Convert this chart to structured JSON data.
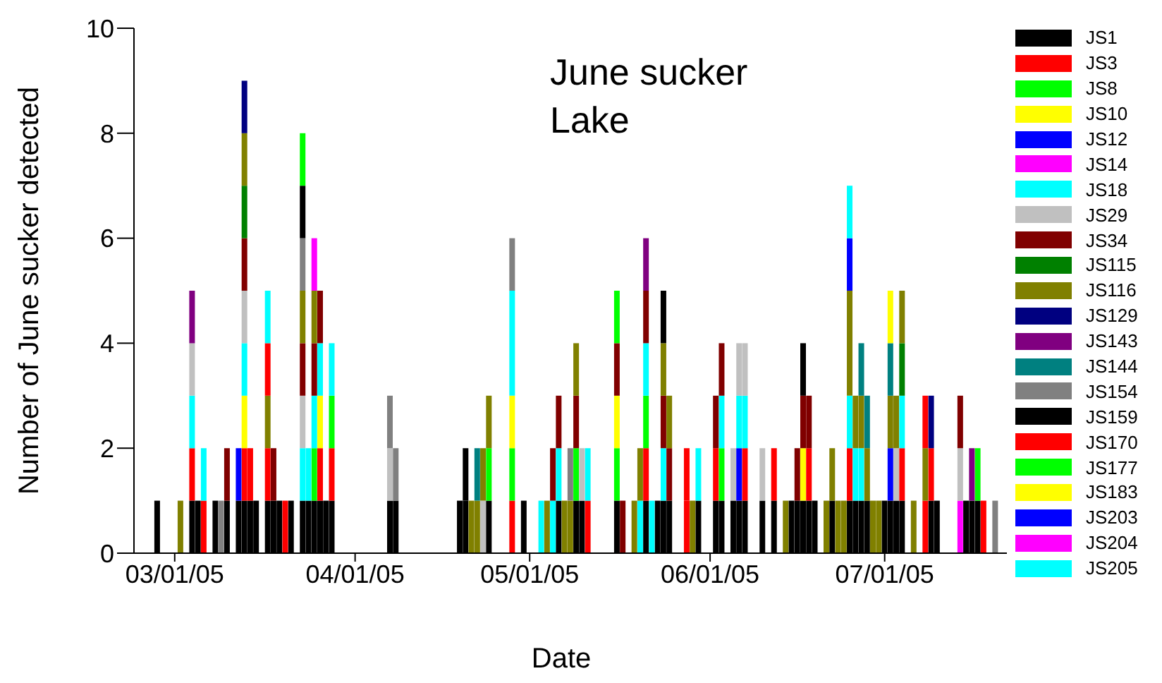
{
  "chart_data": {
    "type": "bar",
    "stacked": true,
    "title": "June sucker Lake",
    "xlabel": "Date",
    "ylabel": "Number of June sucker detected",
    "xlim": [
      "2005-02-22",
      "2005-07-22"
    ],
    "xticks": [
      {
        "value": "2005-03-01",
        "label": "03/01/05"
      },
      {
        "value": "2005-04-01",
        "label": "04/01/05"
      },
      {
        "value": "2005-05-01",
        "label": "05/01/05"
      },
      {
        "value": "2005-06-01",
        "label": "06/01/05"
      },
      {
        "value": "2005-07-01",
        "label": "07/01/05"
      }
    ],
    "ylim": [
      0,
      10
    ],
    "yticks": [
      0,
      2,
      4,
      6,
      8,
      10
    ],
    "grid": false,
    "legend": "right",
    "x": [
      "2005-02-26",
      "2005-03-02",
      "2005-03-04",
      "2005-03-05",
      "2005-03-06",
      "2005-03-08",
      "2005-03-09",
      "2005-03-10",
      "2005-03-12",
      "2005-03-13",
      "2005-03-14",
      "2005-03-15",
      "2005-03-17",
      "2005-03-18",
      "2005-03-19",
      "2005-03-20",
      "2005-03-21",
      "2005-03-23",
      "2005-03-24",
      "2005-03-25",
      "2005-03-26",
      "2005-03-27",
      "2005-03-28",
      "2005-04-07",
      "2005-04-08",
      "2005-04-19",
      "2005-04-20",
      "2005-04-21",
      "2005-04-22",
      "2005-04-23",
      "2005-04-24",
      "2005-04-28",
      "2005-04-30",
      "2005-05-03",
      "2005-05-04",
      "2005-05-05",
      "2005-05-06",
      "2005-05-07",
      "2005-05-08",
      "2005-05-09",
      "2005-05-10",
      "2005-05-11",
      "2005-05-16",
      "2005-05-17",
      "2005-05-19",
      "2005-05-20",
      "2005-05-21",
      "2005-05-22",
      "2005-05-23",
      "2005-05-24",
      "2005-05-25",
      "2005-05-28",
      "2005-05-29",
      "2005-05-30",
      "2005-06-02",
      "2005-06-03",
      "2005-06-05",
      "2005-06-06",
      "2005-06-07",
      "2005-06-10",
      "2005-06-12",
      "2005-06-14",
      "2005-06-15",
      "2005-06-16",
      "2005-06-17",
      "2005-06-18",
      "2005-06-19",
      "2005-06-21",
      "2005-06-22",
      "2005-06-23",
      "2005-06-24",
      "2005-06-25",
      "2005-06-26",
      "2005-06-27",
      "2005-06-28",
      "2005-06-29",
      "2005-06-30",
      "2005-07-01",
      "2005-07-02",
      "2005-07-03",
      "2005-07-04",
      "2005-07-06",
      "2005-07-08",
      "2005-07-09",
      "2005-07-10",
      "2005-07-14",
      "2005-07-15",
      "2005-07-16",
      "2005-07-17",
      "2005-07-18",
      "2005-07-20"
    ],
    "series": [
      {
        "name": "JS1",
        "color": "#000000",
        "values": [
          1,
          null,
          1,
          1,
          null,
          1,
          null,
          1,
          1,
          1,
          1,
          1,
          1,
          1,
          1,
          null,
          1,
          1,
          1,
          1,
          1,
          1,
          1,
          1,
          1,
          1,
          1,
          null,
          null,
          null,
          1,
          null,
          1,
          null,
          null,
          null,
          1,
          null,
          null,
          1,
          1,
          null,
          1,
          null,
          null,
          null,
          1,
          null,
          1,
          1,
          1,
          null,
          null,
          1,
          1,
          1,
          1,
          1,
          1,
          1,
          1,
          null,
          1,
          1,
          1,
          1,
          1,
          null,
          1,
          null,
          null,
          1,
          1,
          1,
          1,
          null,
          null,
          1,
          1,
          1,
          1,
          null,
          null,
          1,
          1,
          null,
          1,
          1,
          1,
          null,
          null
        ]
      },
      {
        "name": "JS3",
        "color": "#ff0000",
        "values": [
          null,
          null,
          1,
          null,
          1,
          null,
          null,
          null,
          null,
          1,
          1,
          null,
          1,
          null,
          null,
          1,
          null,
          null,
          null,
          null,
          1,
          null,
          1,
          null,
          null,
          null,
          null,
          null,
          null,
          null,
          null,
          1,
          null,
          null,
          null,
          null,
          null,
          null,
          null,
          null,
          null,
          1,
          null,
          null,
          null,
          null,
          1,
          null,
          null,
          null,
          null,
          1,
          null,
          null,
          1,
          null,
          null,
          null,
          1,
          null,
          1,
          null,
          null,
          null,
          null,
          1,
          null,
          null,
          null,
          null,
          null,
          1,
          null,
          null,
          null,
          null,
          null,
          null,
          null,
          null,
          1,
          null,
          1,
          1,
          null,
          null,
          null,
          null,
          null,
          1,
          null
        ]
      },
      {
        "name": "JS8",
        "color": "#00ff00",
        "values": [
          null,
          null,
          null,
          null,
          null,
          null,
          null,
          null,
          null,
          null,
          null,
          null,
          null,
          null,
          null,
          null,
          null,
          null,
          null,
          1,
          null,
          null,
          null,
          null,
          null,
          null,
          null,
          null,
          null,
          null,
          1,
          1,
          null,
          null,
          null,
          null,
          null,
          null,
          null,
          1,
          null,
          null,
          1,
          null,
          null,
          null,
          1,
          null,
          null,
          null,
          null,
          null,
          null,
          null,
          null,
          1,
          null,
          null,
          null,
          null,
          null,
          null,
          null,
          null,
          null,
          null,
          null,
          null,
          null,
          null,
          null,
          null,
          null,
          null,
          null,
          null,
          null,
          null,
          null,
          null,
          null,
          null,
          null,
          null,
          null,
          null,
          null,
          null,
          1,
          null,
          null
        ]
      },
      {
        "name": "JS10",
        "color": "#ffff00",
        "values": [
          null,
          null,
          null,
          null,
          null,
          null,
          null,
          null,
          null,
          1,
          null,
          null,
          null,
          null,
          null,
          null,
          null,
          null,
          null,
          null,
          1,
          null,
          null,
          null,
          null,
          null,
          null,
          null,
          null,
          null,
          null,
          1,
          null,
          null,
          null,
          null,
          null,
          null,
          null,
          null,
          null,
          null,
          1,
          null,
          null,
          null,
          null,
          null,
          null,
          null,
          null,
          null,
          null,
          null,
          null,
          null,
          null,
          null,
          null,
          null,
          null,
          null,
          null,
          null,
          1,
          null,
          null,
          null,
          null,
          null,
          null,
          null,
          null,
          null,
          null,
          null,
          null,
          null,
          null,
          null,
          null,
          null,
          null,
          null,
          null,
          null,
          null,
          null,
          null,
          null,
          null
        ]
      },
      {
        "name": "JS12",
        "color": "#0000ff",
        "values": [
          null,
          null,
          null,
          null,
          null,
          null,
          null,
          null,
          1,
          null,
          null,
          null,
          null,
          null,
          null,
          null,
          null,
          null,
          null,
          null,
          null,
          null,
          null,
          null,
          null,
          null,
          null,
          null,
          null,
          null,
          null,
          null,
          null,
          null,
          null,
          null,
          null,
          null,
          null,
          null,
          null,
          null,
          null,
          null,
          null,
          null,
          null,
          null,
          null,
          null,
          null,
          null,
          null,
          null,
          null,
          null,
          null,
          1,
          null,
          null,
          null,
          null,
          null,
          null,
          null,
          null,
          null,
          null,
          null,
          null,
          null,
          null,
          null,
          null,
          null,
          null,
          null,
          null,
          1,
          null,
          null,
          null,
          null,
          null,
          null,
          null,
          null,
          null,
          null,
          null,
          null
        ]
      },
      {
        "name": "JS14",
        "color": "#ff00ff",
        "values": [
          null,
          null,
          null,
          null,
          null,
          null,
          null,
          null,
          null,
          null,
          null,
          null,
          null,
          null,
          null,
          null,
          null,
          null,
          null,
          null,
          null,
          null,
          null,
          null,
          null,
          null,
          null,
          null,
          null,
          null,
          null,
          null,
          null,
          null,
          null,
          null,
          null,
          null,
          null,
          null,
          null,
          null,
          null,
          null,
          null,
          null,
          null,
          null,
          null,
          null,
          null,
          null,
          null,
          null,
          null,
          null,
          null,
          null,
          null,
          null,
          null,
          null,
          null,
          null,
          null,
          null,
          null,
          null,
          null,
          null,
          null,
          null,
          null,
          null,
          null,
          null,
          null,
          null,
          null,
          null,
          null,
          null,
          null,
          null,
          null,
          1,
          null,
          null,
          null,
          null,
          null
        ]
      },
      {
        "name": "JS18",
        "color": "#00ffff",
        "values": [
          null,
          null,
          1,
          null,
          1,
          null,
          null,
          null,
          null,
          1,
          null,
          null,
          null,
          null,
          null,
          null,
          null,
          1,
          1,
          1,
          1,
          null,
          null,
          null,
          null,
          null,
          null,
          null,
          null,
          null,
          null,
          2,
          null,
          1,
          null,
          1,
          1,
          null,
          null,
          null,
          null,
          1,
          null,
          null,
          null,
          1,
          1,
          1,
          null,
          1,
          null,
          null,
          null,
          1,
          null,
          1,
          null,
          1,
          1,
          null,
          null,
          null,
          null,
          null,
          null,
          null,
          null,
          null,
          null,
          null,
          null,
          1,
          1,
          1,
          null,
          null,
          null,
          null,
          null,
          null,
          1,
          null,
          null,
          null,
          null,
          null,
          null,
          null,
          null,
          null,
          null
        ]
      },
      {
        "name": "JS29",
        "color": "#c0c0c0",
        "values": [
          null,
          null,
          1,
          null,
          null,
          null,
          null,
          null,
          null,
          1,
          null,
          null,
          null,
          null,
          null,
          null,
          null,
          1,
          null,
          null,
          null,
          null,
          null,
          1,
          null,
          null,
          null,
          null,
          null,
          1,
          null,
          null,
          null,
          null,
          null,
          null,
          null,
          null,
          null,
          null,
          1,
          null,
          null,
          null,
          null,
          null,
          null,
          null,
          null,
          null,
          null,
          null,
          null,
          null,
          null,
          null,
          1,
          1,
          1,
          1,
          null,
          null,
          null,
          null,
          null,
          null,
          null,
          null,
          null,
          null,
          null,
          null,
          null,
          null,
          null,
          null,
          null,
          null,
          null,
          1,
          null,
          null,
          null,
          null,
          null,
          1,
          null,
          null,
          null,
          null,
          null
        ]
      },
      {
        "name": "JS34",
        "color": "#800000",
        "values": [
          null,
          null,
          null,
          null,
          null,
          null,
          null,
          1,
          null,
          1,
          null,
          null,
          null,
          1,
          null,
          null,
          null,
          1,
          null,
          1,
          1,
          null,
          null,
          null,
          null,
          null,
          null,
          null,
          null,
          null,
          null,
          null,
          null,
          null,
          null,
          1,
          1,
          null,
          null,
          1,
          null,
          null,
          1,
          1,
          null,
          null,
          1,
          null,
          null,
          1,
          1,
          null,
          null,
          null,
          1,
          1,
          null,
          null,
          null,
          null,
          null,
          null,
          null,
          1,
          1,
          1,
          null,
          null,
          null,
          null,
          null,
          null,
          null,
          null,
          null,
          null,
          null,
          null,
          null,
          null,
          null,
          null,
          null,
          null,
          null,
          1,
          null,
          null,
          null,
          null,
          null
        ]
      },
      {
        "name": "JS115",
        "color": "#008000",
        "values": [
          null,
          null,
          null,
          null,
          null,
          null,
          null,
          null,
          null,
          1,
          null,
          null,
          null,
          null,
          null,
          null,
          null,
          null,
          null,
          null,
          null,
          null,
          null,
          null,
          null,
          null,
          null,
          null,
          null,
          null,
          null,
          null,
          null,
          null,
          null,
          null,
          null,
          null,
          null,
          null,
          null,
          null,
          null,
          null,
          null,
          null,
          null,
          null,
          null,
          null,
          null,
          null,
          null,
          null,
          null,
          null,
          null,
          null,
          null,
          null,
          null,
          null,
          null,
          null,
          null,
          null,
          null,
          null,
          null,
          null,
          null,
          null,
          null,
          null,
          null,
          null,
          null,
          null,
          null,
          null,
          1,
          null,
          null,
          null,
          null,
          null,
          null,
          null,
          null,
          null,
          null
        ]
      },
      {
        "name": "JS116",
        "color": "#808000",
        "values": [
          null,
          1,
          null,
          null,
          null,
          null,
          null,
          null,
          null,
          1,
          null,
          null,
          1,
          null,
          null,
          null,
          null,
          1,
          null,
          1,
          null,
          null,
          null,
          null,
          null,
          null,
          null,
          1,
          1,
          1,
          1,
          null,
          null,
          null,
          1,
          null,
          null,
          1,
          1,
          1,
          null,
          null,
          null,
          null,
          1,
          1,
          null,
          null,
          null,
          1,
          1,
          null,
          1,
          null,
          null,
          null,
          null,
          null,
          null,
          null,
          null,
          1,
          null,
          null,
          null,
          null,
          null,
          1,
          1,
          1,
          1,
          2,
          1,
          1,
          1,
          1,
          1,
          null,
          1,
          1,
          1,
          1,
          1,
          null,
          null,
          null,
          null,
          null,
          null,
          null,
          null
        ]
      },
      {
        "name": "JS129",
        "color": "#000080",
        "values": [
          null,
          null,
          null,
          null,
          null,
          null,
          null,
          null,
          null,
          1,
          null,
          null,
          null,
          null,
          null,
          null,
          null,
          null,
          null,
          null,
          null,
          null,
          null,
          null,
          null,
          null,
          null,
          null,
          null,
          null,
          null,
          null,
          null,
          null,
          null,
          null,
          null,
          null,
          null,
          null,
          null,
          null,
          null,
          null,
          null,
          null,
          null,
          null,
          null,
          null,
          null,
          null,
          null,
          null,
          null,
          null,
          null,
          null,
          null,
          null,
          null,
          null,
          null,
          null,
          null,
          null,
          null,
          null,
          null,
          null,
          null,
          null,
          null,
          null,
          null,
          null,
          null,
          null,
          null,
          null,
          null,
          null,
          null,
          1,
          null,
          null,
          null,
          null,
          null,
          null,
          null
        ]
      },
      {
        "name": "JS143",
        "color": "#800080",
        "values": [
          null,
          null,
          1,
          null,
          null,
          null,
          null,
          null,
          null,
          null,
          null,
          null,
          null,
          null,
          null,
          null,
          null,
          null,
          null,
          null,
          null,
          null,
          null,
          null,
          null,
          null,
          null,
          null,
          null,
          null,
          null,
          null,
          null,
          null,
          null,
          null,
          null,
          null,
          null,
          null,
          null,
          null,
          null,
          null,
          null,
          null,
          1,
          null,
          null,
          null,
          null,
          null,
          null,
          null,
          null,
          null,
          null,
          null,
          null,
          null,
          null,
          null,
          null,
          null,
          null,
          null,
          null,
          null,
          null,
          null,
          null,
          null,
          null,
          null,
          null,
          null,
          null,
          null,
          null,
          null,
          null,
          null,
          null,
          null,
          null,
          null,
          null,
          1,
          null,
          null,
          null
        ]
      },
      {
        "name": "JS144",
        "color": "#008080",
        "values": [
          null,
          null,
          null,
          null,
          null,
          null,
          null,
          null,
          null,
          null,
          null,
          null,
          null,
          null,
          null,
          null,
          null,
          null,
          null,
          null,
          null,
          null,
          null,
          null,
          null,
          null,
          null,
          null,
          1,
          null,
          null,
          null,
          null,
          null,
          null,
          null,
          null,
          null,
          null,
          null,
          null,
          null,
          null,
          null,
          null,
          null,
          null,
          null,
          null,
          null,
          null,
          null,
          null,
          null,
          null,
          null,
          null,
          null,
          null,
          null,
          null,
          null,
          null,
          null,
          null,
          null,
          null,
          null,
          null,
          null,
          null,
          null,
          null,
          1,
          1,
          null,
          null,
          null,
          1,
          null,
          null,
          null,
          null,
          null,
          null,
          null,
          null,
          null,
          null,
          null,
          null
        ]
      },
      {
        "name": "JS154",
        "color": "#808080",
        "values": [
          null,
          null,
          null,
          null,
          null,
          null,
          1,
          null,
          null,
          null,
          null,
          null,
          null,
          null,
          null,
          null,
          null,
          1,
          null,
          null,
          null,
          null,
          null,
          1,
          1,
          null,
          null,
          null,
          null,
          null,
          null,
          1,
          null,
          null,
          null,
          null,
          null,
          null,
          1,
          null,
          null,
          null,
          null,
          null,
          null,
          null,
          null,
          null,
          null,
          null,
          null,
          null,
          null,
          null,
          null,
          null,
          null,
          null,
          null,
          null,
          null,
          null,
          null,
          null,
          null,
          null,
          null,
          null,
          null,
          null,
          null,
          null,
          null,
          null,
          null,
          null,
          null,
          null,
          null,
          null,
          null,
          null,
          null,
          null,
          null,
          null,
          null,
          null,
          null,
          null,
          1
        ]
      },
      {
        "name": "JS159",
        "color": "#000000",
        "values": [
          null,
          null,
          null,
          null,
          null,
          null,
          null,
          null,
          null,
          null,
          null,
          null,
          null,
          null,
          null,
          null,
          null,
          1,
          null,
          null,
          null,
          null,
          null,
          null,
          null,
          null,
          1,
          null,
          null,
          null,
          null,
          null,
          null,
          null,
          null,
          null,
          null,
          null,
          null,
          null,
          null,
          null,
          null,
          null,
          null,
          null,
          null,
          null,
          null,
          1,
          null,
          null,
          null,
          null,
          null,
          null,
          null,
          null,
          null,
          null,
          null,
          null,
          null,
          null,
          1,
          null,
          null,
          null,
          null,
          null,
          null,
          null,
          null,
          null,
          null,
          null,
          null,
          null,
          null,
          null,
          null,
          null,
          null,
          null,
          null,
          null,
          null,
          null,
          null,
          null,
          null
        ]
      },
      {
        "name": "JS170",
        "color": "#ff0000",
        "values": [
          null,
          null,
          null,
          null,
          null,
          null,
          null,
          null,
          null,
          null,
          null,
          null,
          1,
          null,
          null,
          null,
          null,
          null,
          null,
          null,
          null,
          null,
          null,
          null,
          null,
          null,
          null,
          null,
          null,
          null,
          null,
          null,
          null,
          null,
          null,
          null,
          null,
          null,
          null,
          null,
          null,
          null,
          null,
          null,
          null,
          null,
          null,
          null,
          null,
          null,
          null,
          1,
          null,
          null,
          null,
          null,
          null,
          null,
          null,
          null,
          null,
          null,
          null,
          null,
          null,
          null,
          null,
          null,
          null,
          null,
          null,
          null,
          null,
          null,
          null,
          null,
          null,
          null,
          null,
          null,
          null,
          null,
          1,
          null,
          null,
          null,
          null,
          null,
          null,
          null,
          null
        ]
      },
      {
        "name": "JS177",
        "color": "#00ff00",
        "values": [
          null,
          null,
          null,
          null,
          null,
          null,
          null,
          null,
          null,
          null,
          null,
          null,
          null,
          null,
          null,
          null,
          null,
          1,
          null,
          null,
          null,
          null,
          1,
          null,
          null,
          null,
          null,
          null,
          null,
          null,
          null,
          null,
          null,
          null,
          null,
          null,
          null,
          null,
          null,
          null,
          null,
          null,
          1,
          null,
          null,
          null,
          null,
          null,
          null,
          null,
          null,
          null,
          null,
          null,
          null,
          null,
          null,
          null,
          null,
          null,
          null,
          null,
          null,
          null,
          null,
          null,
          null,
          null,
          null,
          null,
          null,
          null,
          null,
          null,
          null,
          null,
          null,
          null,
          null,
          null,
          null,
          null,
          null,
          null,
          null,
          null,
          null,
          null,
          null,
          null,
          null
        ]
      },
      {
        "name": "JS183",
        "color": "#ffff00",
        "values": [
          null,
          null,
          null,
          null,
          null,
          null,
          null,
          null,
          null,
          null,
          null,
          null,
          null,
          null,
          null,
          null,
          null,
          null,
          null,
          null,
          null,
          null,
          null,
          null,
          null,
          null,
          null,
          null,
          null,
          null,
          null,
          null,
          null,
          null,
          null,
          null,
          null,
          null,
          null,
          null,
          null,
          null,
          null,
          null,
          null,
          null,
          null,
          null,
          null,
          null,
          null,
          null,
          null,
          null,
          null,
          null,
          null,
          null,
          null,
          null,
          null,
          null,
          null,
          null,
          null,
          null,
          null,
          null,
          null,
          null,
          null,
          null,
          null,
          null,
          null,
          null,
          null,
          null,
          1,
          null,
          null,
          null,
          null,
          null,
          null,
          null,
          null,
          null,
          null,
          null,
          null
        ]
      },
      {
        "name": "JS203",
        "color": "#0000ff",
        "values": [
          null,
          null,
          null,
          null,
          null,
          null,
          null,
          null,
          null,
          null,
          null,
          null,
          null,
          null,
          null,
          null,
          null,
          null,
          null,
          null,
          null,
          null,
          null,
          null,
          null,
          null,
          null,
          null,
          null,
          null,
          null,
          null,
          null,
          null,
          null,
          null,
          null,
          null,
          null,
          null,
          null,
          null,
          null,
          null,
          null,
          null,
          null,
          null,
          null,
          null,
          null,
          null,
          null,
          null,
          null,
          null,
          null,
          null,
          null,
          null,
          null,
          null,
          null,
          null,
          null,
          null,
          null,
          null,
          null,
          null,
          null,
          1,
          null,
          null,
          null,
          null,
          null,
          null,
          null,
          null,
          null,
          null,
          null,
          null,
          null,
          null,
          null,
          null,
          null,
          null,
          null
        ]
      },
      {
        "name": "JS204",
        "color": "#ff00ff",
        "values": [
          null,
          null,
          null,
          null,
          null,
          null,
          null,
          null,
          null,
          null,
          null,
          null,
          null,
          null,
          null,
          null,
          null,
          null,
          null,
          1,
          null,
          null,
          null,
          null,
          null,
          null,
          null,
          null,
          null,
          null,
          null,
          null,
          null,
          null,
          null,
          null,
          null,
          null,
          null,
          null,
          null,
          null,
          null,
          null,
          null,
          null,
          null,
          null,
          null,
          null,
          null,
          null,
          null,
          null,
          null,
          null,
          null,
          null,
          null,
          null,
          null,
          null,
          null,
          null,
          null,
          null,
          null,
          null,
          null,
          null,
          null,
          null,
          null,
          null,
          null,
          null,
          null,
          null,
          null,
          null,
          null,
          null,
          null,
          null,
          null,
          null,
          null,
          null,
          null,
          null,
          null
        ]
      },
      {
        "name": "JS205",
        "color": "#00ffff",
        "values": [
          null,
          null,
          null,
          null,
          null,
          null,
          null,
          null,
          null,
          null,
          null,
          null,
          1,
          null,
          null,
          null,
          null,
          null,
          null,
          null,
          null,
          null,
          1,
          null,
          null,
          null,
          null,
          null,
          null,
          null,
          null,
          null,
          null,
          null,
          null,
          null,
          null,
          null,
          null,
          null,
          null,
          null,
          null,
          null,
          null,
          null,
          null,
          null,
          null,
          null,
          null,
          null,
          null,
          null,
          null,
          null,
          null,
          null,
          null,
          null,
          null,
          null,
          null,
          null,
          null,
          null,
          null,
          null,
          null,
          null,
          null,
          1,
          null,
          null,
          null,
          null,
          null,
          null,
          null,
          null,
          null,
          null,
          null,
          null,
          null,
          null,
          null,
          null,
          null,
          null,
          null
        ]
      }
    ]
  }
}
